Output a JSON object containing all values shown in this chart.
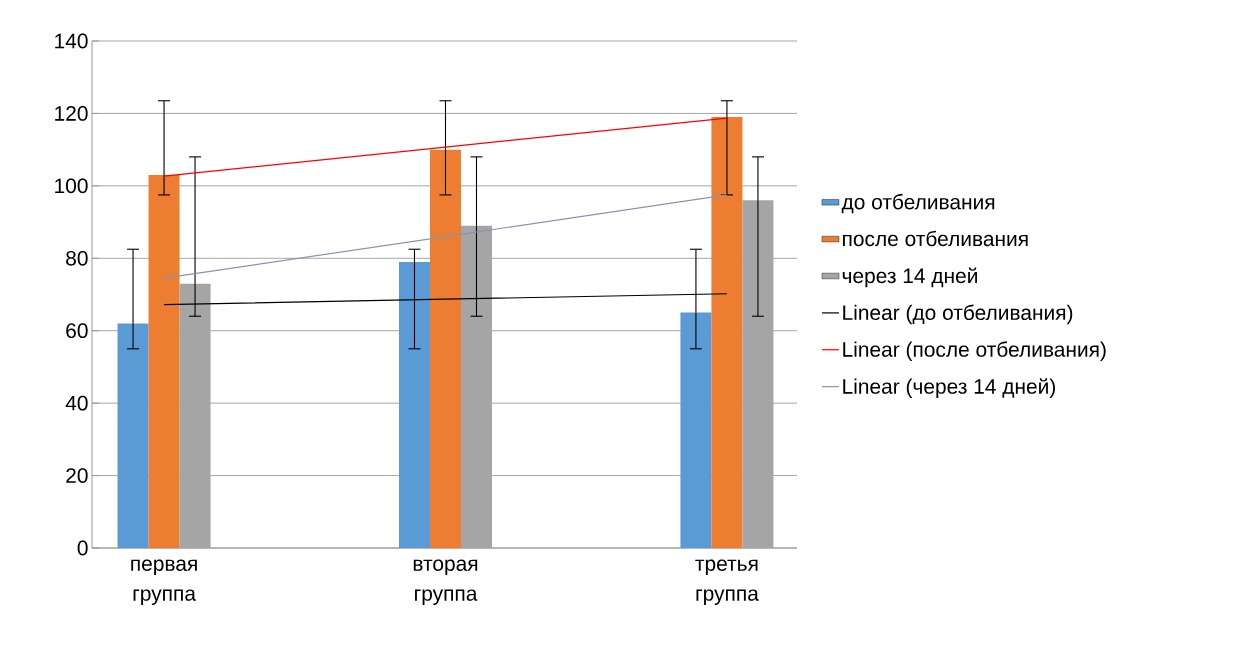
{
  "chart_data": {
    "type": "bar",
    "categories": [
      "первая группа",
      "вторая группа",
      "третья группа"
    ],
    "ylim": [
      0,
      140
    ],
    "yticks": [
      0,
      20,
      40,
      60,
      80,
      100,
      120,
      140
    ],
    "grid": "y",
    "legend": "right",
    "series": [
      {
        "name": "до отбеливания",
        "color": "#5b9bd5",
        "values": [
          62,
          79,
          65
        ],
        "errors": [
          [
            55,
            82.5
          ],
          [
            55,
            82.5
          ],
          [
            55,
            82.5
          ]
        ]
      },
      {
        "name": "после отбеливания",
        "color": "#ed7d31",
        "values": [
          103,
          110,
          119
        ],
        "errors": [
          [
            97.5,
            123.5
          ],
          [
            97.5,
            123.5
          ],
          [
            97.5,
            123.5
          ]
        ]
      },
      {
        "name": "через 14 дней",
        "color": "#a5a5a5",
        "values": [
          73,
          89,
          96
        ],
        "errors": [
          [
            64,
            108
          ],
          [
            64,
            108
          ],
          [
            64,
            108
          ]
        ]
      },
      {
        "type": "line",
        "name": "Linear (до отбеливания)",
        "color": "#000000",
        "values": [
          67.2,
          68.7,
          70.2
        ]
      },
      {
        "type": "line",
        "name": "Linear (после отбеливания)",
        "color": "#ff0000",
        "values": [
          102.7,
          110.7,
          118.7
        ]
      },
      {
        "type": "line",
        "name": "Linear (через 14 дней)",
        "color": "#8497b0",
        "values": [
          74.5,
          86,
          97.5
        ]
      }
    ]
  }
}
